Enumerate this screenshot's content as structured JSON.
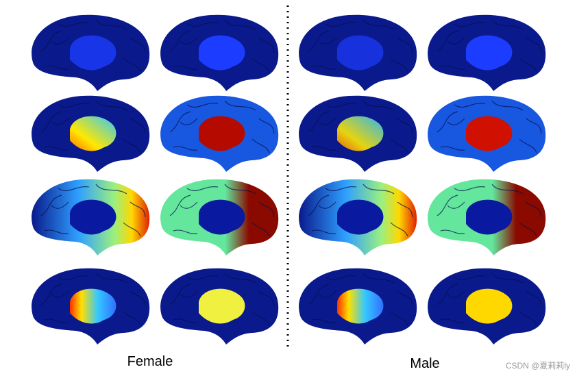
{
  "groups": [
    {
      "label": "Female"
    },
    {
      "label": "Male"
    }
  ],
  "watermark": "CSDN @夏莉莉ly"
}
